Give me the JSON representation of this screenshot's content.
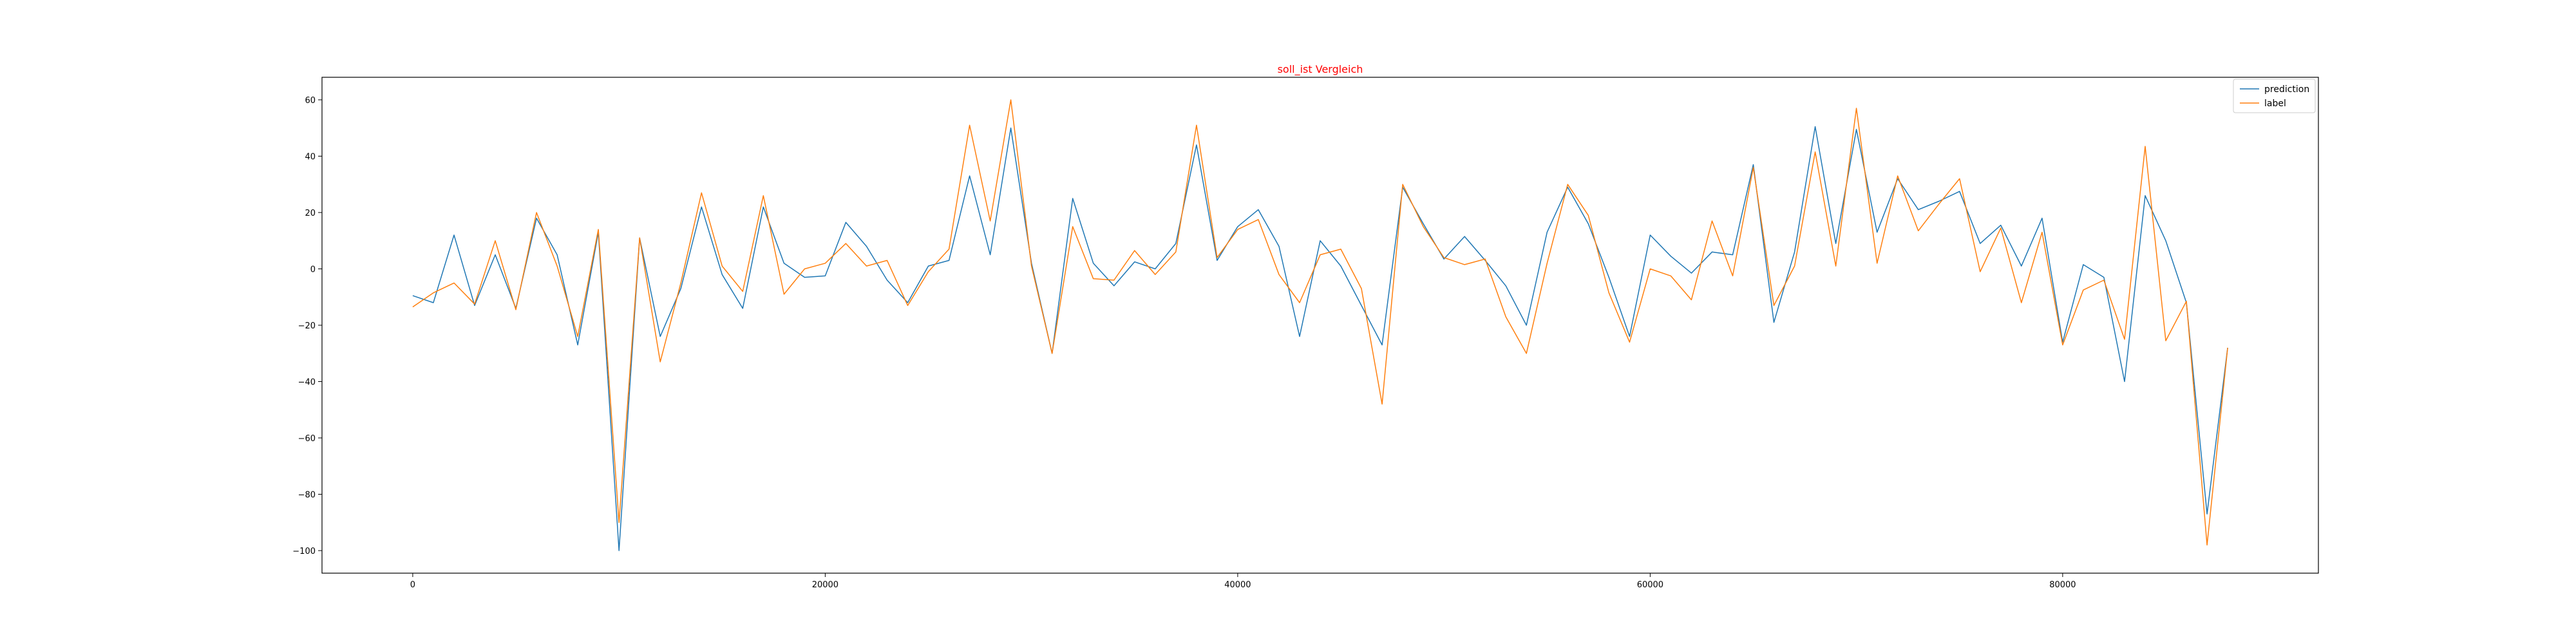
{
  "chart_data": {
    "type": "line",
    "title": "soll_ist Vergleich",
    "title_color": "#ff0000",
    "xlabel": "",
    "ylabel": "",
    "xlim": [
      -4400,
      92400
    ],
    "ylim": [
      -108,
      68
    ],
    "xticks": [
      0,
      20000,
      40000,
      60000,
      80000
    ],
    "xtick_labels": [
      "0",
      "20000",
      "40000",
      "60000",
      "80000"
    ],
    "yticks": [
      60,
      40,
      20,
      0,
      -20,
      -40,
      -60,
      -80,
      -100
    ],
    "ytick_labels": [
      "60",
      "40",
      "20",
      "0",
      "−20",
      "−40",
      "−60",
      "−80",
      "−100"
    ],
    "grid": false,
    "legend_position": "top-right",
    "x": [
      0,
      1000,
      2000,
      3000,
      4000,
      5000,
      6000,
      7000,
      8000,
      9000,
      10000,
      11000,
      12000,
      13000,
      14000,
      15000,
      16000,
      17000,
      18000,
      19000,
      20000,
      21000,
      22000,
      23000,
      24000,
      25000,
      26000,
      27000,
      28000,
      29000,
      30000,
      31000,
      32000,
      33000,
      34000,
      35000,
      36000,
      37000,
      38000,
      39000,
      40000,
      41000,
      42000,
      43000,
      44000,
      45000,
      46000,
      47000,
      48000,
      49000,
      50000,
      51000,
      52000,
      53000,
      54000,
      55000,
      56000,
      57000,
      58000,
      59000,
      60000,
      61000,
      62000,
      63000,
      64000,
      65000,
      66000,
      67000,
      68000,
      69000,
      70000,
      71000,
      72000,
      73000,
      74000,
      75000,
      76000,
      77000,
      78000,
      79000,
      80000,
      81000,
      82000,
      83000,
      84000,
      85000,
      86000,
      87000,
      88000
    ],
    "series": [
      {
        "name": "prediction",
        "color": "#1f77b4",
        "values": [
          -9.5,
          -12,
          12,
          -13,
          5,
          -14,
          18,
          5,
          -27,
          13,
          -100,
          11,
          -24,
          -7,
          22,
          -2,
          -14,
          22,
          2,
          -3,
          -2.5,
          16.5,
          8,
          -4,
          -12,
          1,
          3,
          33,
          5,
          50,
          2,
          -30,
          25,
          2,
          -6,
          2.5,
          0,
          9,
          44,
          3,
          15,
          21,
          8,
          -24,
          10,
          1,
          -13,
          -27,
          29,
          16,
          3.5,
          11.5,
          3,
          -6,
          -20,
          13,
          29,
          16,
          -3,
          -24,
          12,
          4.5,
          -1.5,
          6,
          5,
          37,
          -19,
          6,
          50.5,
          9,
          49.5,
          13,
          32,
          21,
          24,
          27.5,
          9,
          15.5,
          1,
          18,
          -26,
          1.5,
          -3,
          -40,
          26,
          10,
          -12,
          -87,
          -28
        ]
      },
      {
        "name": "label",
        "color": "#ff7f0e",
        "values": [
          -13.5,
          -8.5,
          -5,
          -12.5,
          10,
          -14.5,
          20,
          1,
          -24,
          14,
          -90,
          11,
          -33,
          -5,
          27,
          1,
          -8,
          26,
          -9,
          0,
          2,
          9,
          1,
          3,
          -13,
          -1,
          7,
          51,
          17,
          60,
          1,
          -30,
          15,
          -3.5,
          -4,
          6.5,
          -2,
          6,
          51,
          4,
          14,
          17.5,
          -2,
          -12,
          5,
          7,
          -7,
          -48,
          30,
          15,
          4,
          1.5,
          3.5,
          -17,
          -30,
          2,
          30,
          19,
          -8.5,
          -26,
          0,
          -2.5,
          -11,
          17,
          -2.5,
          36,
          -13,
          1,
          41.5,
          1,
          57,
          2,
          33,
          13.5,
          23,
          32,
          -1,
          14.5,
          -12,
          13,
          -27,
          -7.5,
          -4,
          -25,
          43.5,
          -25.5,
          -11.5,
          -98,
          -28
        ]
      }
    ]
  }
}
